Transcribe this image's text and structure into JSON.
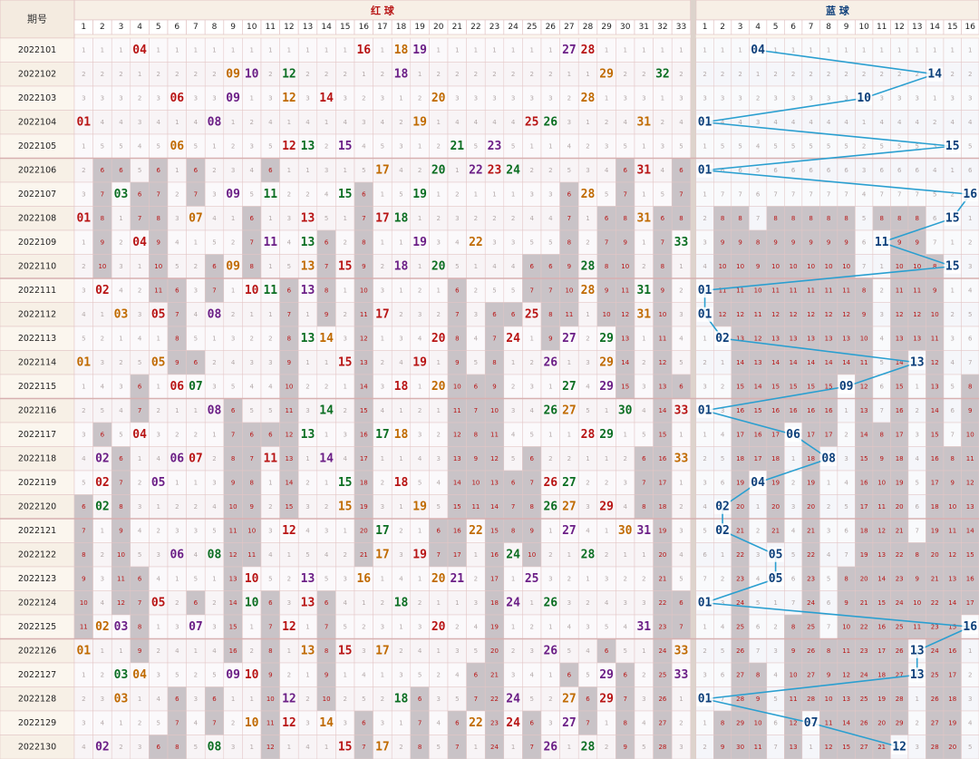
{
  "title_period": "期号",
  "title_red": "红 球",
  "title_blue": "蓝 球",
  "colors": {
    "grid": "#e3c6c6",
    "bg": "#fbf6ee",
    "shade": "#c9c3c7",
    "red_text": "#b81414",
    "blue_text": "#0d3f7a",
    "line": "#2a9fd0",
    "miss_text": "#b3a9a9"
  },
  "chart_data": {
    "type": "table",
    "red_columns": [
      "1",
      "2",
      "3",
      "4",
      "5",
      "6",
      "7",
      "8",
      "9",
      "10",
      "11",
      "12",
      "13",
      "14",
      "15",
      "16",
      "17",
      "18",
      "19",
      "20",
      "21",
      "22",
      "23",
      "24",
      "25",
      "26",
      "27",
      "28",
      "29",
      "30",
      "31",
      "32",
      "33"
    ],
    "blue_columns": [
      "1",
      "2",
      "3",
      "4",
      "5",
      "6",
      "7",
      "8",
      "9",
      "10",
      "11",
      "12",
      "13",
      "14",
      "15",
      "16"
    ],
    "draws": [
      {
        "period": "2022101",
        "red": [
          "04",
          "16",
          "18",
          "19",
          "27",
          "28"
        ],
        "blue": "04"
      },
      {
        "period": "2022102",
        "red": [
          "09",
          "10",
          "12",
          "18",
          "29",
          "32"
        ],
        "blue": "14"
      },
      {
        "period": "2022103",
        "red": [
          "06",
          "09",
          "12",
          "14",
          "20",
          "28"
        ],
        "blue": "10"
      },
      {
        "period": "2022104",
        "red": [
          "01",
          "08",
          "19",
          "25",
          "26",
          "31"
        ],
        "blue": "01"
      },
      {
        "period": "2022105",
        "red": [
          "06",
          "12",
          "13",
          "15",
          "21",
          "23"
        ],
        "blue": "15"
      },
      {
        "period": "2022106",
        "red": [
          "17",
          "20",
          "22",
          "23",
          "24",
          "31"
        ],
        "blue": "01"
      },
      {
        "period": "2022107",
        "red": [
          "03",
          "09",
          "11",
          "15",
          "19",
          "28"
        ],
        "blue": "16"
      },
      {
        "period": "2022108",
        "red": [
          "01",
          "07",
          "13",
          "17",
          "18",
          "31"
        ],
        "blue": "15"
      },
      {
        "period": "2022109",
        "red": [
          "04",
          "11",
          "13",
          "19",
          "22",
          "33"
        ],
        "blue": "11"
      },
      {
        "period": "2022110",
        "red": [
          "09",
          "13",
          "15",
          "18",
          "20",
          "28"
        ],
        "blue": "15"
      },
      {
        "period": "2022111",
        "red": [
          "02",
          "10",
          "11",
          "13",
          "28",
          "31"
        ],
        "blue": "01"
      },
      {
        "period": "2022112",
        "red": [
          "03",
          "05",
          "08",
          "17",
          "25",
          "31"
        ],
        "blue": "01"
      },
      {
        "period": "2022113",
        "red": [
          "13",
          "14",
          "20",
          "24",
          "27",
          "29"
        ],
        "blue": "02"
      },
      {
        "period": "2022114",
        "red": [
          "01",
          "05",
          "15",
          "19",
          "26",
          "29"
        ],
        "blue": "13"
      },
      {
        "period": "2022115",
        "red": [
          "06",
          "07",
          "18",
          "20",
          "27",
          "29"
        ],
        "blue": "09"
      },
      {
        "period": "2022116",
        "red": [
          "08",
          "14",
          "26",
          "27",
          "30",
          "33"
        ],
        "blue": "01"
      },
      {
        "period": "2022117",
        "red": [
          "04",
          "13",
          "17",
          "18",
          "28",
          "29"
        ],
        "blue": "06"
      },
      {
        "period": "2022118",
        "red": [
          "02",
          "06",
          "07",
          "11",
          "14",
          "33"
        ],
        "blue": "08"
      },
      {
        "period": "2022119",
        "red": [
          "02",
          "05",
          "15",
          "18",
          "26",
          "27"
        ],
        "blue": "04"
      },
      {
        "period": "2022120",
        "red": [
          "02",
          "15",
          "19",
          "26",
          "27",
          "29"
        ],
        "blue": "02"
      },
      {
        "period": "2022121",
        "red": [
          "12",
          "17",
          "22",
          "27",
          "30",
          "31"
        ],
        "blue": "02"
      },
      {
        "period": "2022122",
        "red": [
          "06",
          "08",
          "17",
          "19",
          "24",
          "28"
        ],
        "blue": "05"
      },
      {
        "period": "2022123",
        "red": [
          "10",
          "13",
          "16",
          "20",
          "21",
          "25"
        ],
        "blue": "05"
      },
      {
        "period": "2022124",
        "red": [
          "05",
          "10",
          "13",
          "18",
          "24",
          "26"
        ],
        "blue": "01"
      },
      {
        "period": "2022125",
        "red": [
          "02",
          "03",
          "07",
          "12",
          "20",
          "31"
        ],
        "blue": "16"
      },
      {
        "period": "2022126",
        "red": [
          "01",
          "13",
          "15",
          "17",
          "26",
          "33"
        ],
        "blue": "13"
      },
      {
        "period": "2022127",
        "red": [
          "03",
          "04",
          "09",
          "10",
          "29",
          "33"
        ],
        "blue": "13"
      },
      {
        "period": "2022128",
        "red": [
          "03",
          "12",
          "18",
          "24",
          "27",
          "29"
        ],
        "blue": "01"
      },
      {
        "period": "2022129",
        "red": [
          "10",
          "12",
          "14",
          "22",
          "24",
          "27"
        ],
        "blue": "07"
      },
      {
        "period": "2022130",
        "red": [
          "02",
          "08",
          "15",
          "17",
          "26",
          "28"
        ],
        "blue": "12"
      }
    ]
  }
}
